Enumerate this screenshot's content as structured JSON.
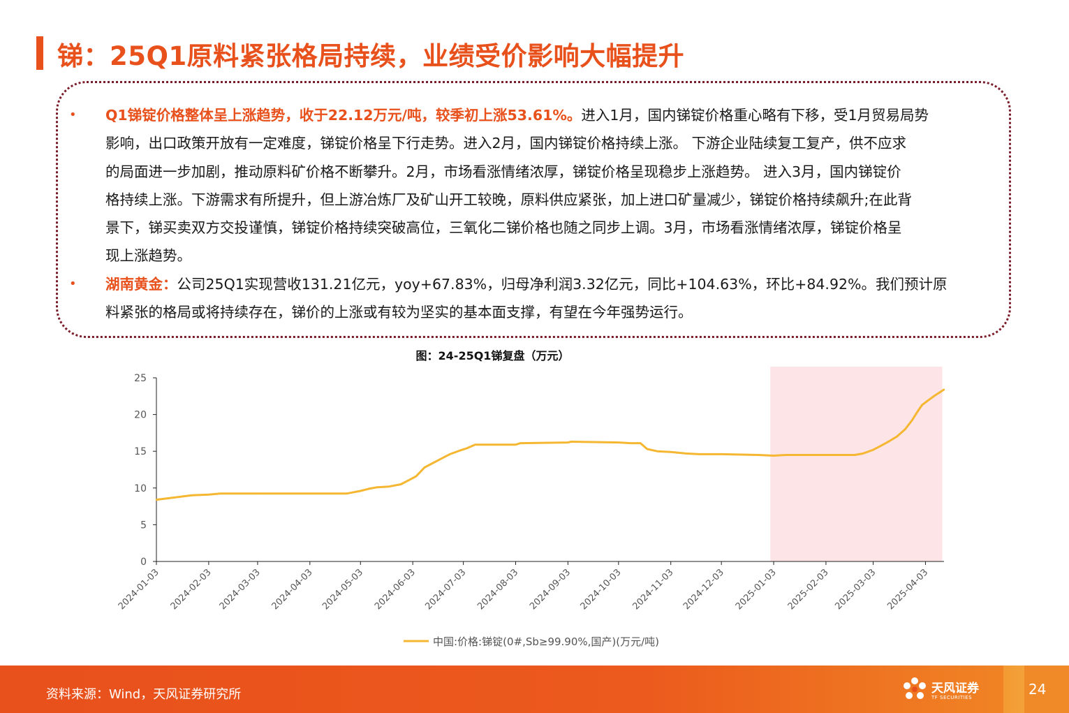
{
  "title": "锑：25Q1原料紧张格局持续，业绩受价影响大幅提升",
  "bullets": [
    {
      "highlight": "Q1锑锭价格整体呈上涨趋势，收于22.12万元/吨，较季初上涨53.61%。",
      "lines": [
        "进入1月，国内锑锭价格重心略有下移，受1月贸易局势",
        "影响，出口政策开放有一定难度，锑锭价格呈下行走势。进入2月，国内锑锭价格持续上涨。 下游企业陆续复工复产，供不应求",
        "的局面进一步加剧，推动原料矿价格不断攀升。2月，市场看涨情绪浓厚，锑锭价格呈现稳步上涨趋势。 进入3月，国内锑锭价",
        "格持续上涨。下游需求有所提升，但上游冶炼厂及矿山开工较晚，原料供应紧张，加上进口矿量减少，锑锭价格持续飙升;在此背",
        "景下，锑买卖双方交投谨慎，锑锭价格持续突破高位，三氧化二锑价格也随之同步上调。3月，市场看涨情绪浓厚，锑锭价格呈",
        "现上涨趋势。"
      ]
    },
    {
      "highlight": "湖南黄金：",
      "lines": [
        "公司25Q1实现营收131.21亿元，yoy+67.83%，归母净利润3.32亿元，同比+104.63%，环比+84.92%。我们预计原",
        "料紧张的格局或将持续存在，锑价的上涨或有较为坚实的基本面支撑，有望在今年强势运行。"
      ]
    }
  ],
  "bullet_char": "•",
  "chart_title": "图：24-25Q1锑复盘（万元）",
  "chart_data": {
    "type": "line",
    "ylim": [
      0,
      25
    ],
    "yticks": [
      "0",
      "5",
      "10",
      "15",
      "20",
      "25"
    ],
    "x_tick_labels": [
      "2024-01-03",
      "2024-02-03",
      "2024-03-03",
      "2024-04-03",
      "2024-05-03",
      "2024-06-03",
      "2024-07-03",
      "2024-08-03",
      "2024-09-03",
      "2024-10-03",
      "2024-11-03",
      "2024-12-03",
      "2025-01-03",
      "2025-02-03",
      "2025-03-03",
      "2025-04-03"
    ],
    "highlight_region": {
      "from": "2025-01-01",
      "to": "2025-04-13"
    },
    "series": [
      {
        "name": "中国:价格:锑锭(0#,Sb≥99.90%,国产)(万元/吨)",
        "color": "#f5b731",
        "points": [
          [
            "2024-01-03",
            8.4
          ],
          [
            "2024-01-10",
            8.6
          ],
          [
            "2024-01-17",
            8.8
          ],
          [
            "2024-01-24",
            9.0
          ],
          [
            "2024-02-03",
            9.1
          ],
          [
            "2024-02-10",
            9.25
          ],
          [
            "2024-03-03",
            9.25
          ],
          [
            "2024-04-03",
            9.25
          ],
          [
            "2024-04-25",
            9.25
          ],
          [
            "2024-05-03",
            9.6
          ],
          [
            "2024-05-08",
            9.9
          ],
          [
            "2024-05-13",
            10.1
          ],
          [
            "2024-05-20",
            10.2
          ],
          [
            "2024-05-27",
            10.5
          ],
          [
            "2024-06-01",
            11.1
          ],
          [
            "2024-06-05",
            11.6
          ],
          [
            "2024-06-10",
            12.8
          ],
          [
            "2024-06-15",
            13.4
          ],
          [
            "2024-06-20",
            14.0
          ],
          [
            "2024-06-25",
            14.6
          ],
          [
            "2024-07-01",
            15.1
          ],
          [
            "2024-07-05",
            15.4
          ],
          [
            "2024-07-10",
            15.9
          ],
          [
            "2024-07-20",
            15.9
          ],
          [
            "2024-08-03",
            15.9
          ],
          [
            "2024-08-06",
            16.1
          ],
          [
            "2024-09-03",
            16.2
          ],
          [
            "2024-09-05",
            16.3
          ],
          [
            "2024-10-03",
            16.2
          ],
          [
            "2024-10-10",
            16.1
          ],
          [
            "2024-10-16",
            16.1
          ],
          [
            "2024-10-20",
            15.3
          ],
          [
            "2024-10-26",
            15.0
          ],
          [
            "2024-11-03",
            14.9
          ],
          [
            "2024-11-12",
            14.7
          ],
          [
            "2024-11-20",
            14.6
          ],
          [
            "2024-12-03",
            14.6
          ],
          [
            "2024-12-25",
            14.5
          ],
          [
            "2025-01-03",
            14.4
          ],
          [
            "2025-01-10",
            14.5
          ],
          [
            "2025-02-03",
            14.5
          ],
          [
            "2025-02-20",
            14.5
          ],
          [
            "2025-02-25",
            14.7
          ],
          [
            "2025-03-03",
            15.2
          ],
          [
            "2025-03-08",
            15.8
          ],
          [
            "2025-03-12",
            16.3
          ],
          [
            "2025-03-17",
            17.0
          ],
          [
            "2025-03-22",
            18.0
          ],
          [
            "2025-03-26",
            19.2
          ],
          [
            "2025-03-29",
            20.3
          ],
          [
            "2025-04-01",
            21.3
          ],
          [
            "2025-04-05",
            22.0
          ],
          [
            "2025-04-08",
            22.5
          ],
          [
            "2025-04-12",
            23.1
          ],
          [
            "2025-04-14",
            23.4
          ]
        ]
      }
    ]
  },
  "source": "资料来源：Wind，天风证券研究所",
  "logo_text": "天风证券",
  "logo_sub": "TF SECURITIES",
  "page_number": "24"
}
